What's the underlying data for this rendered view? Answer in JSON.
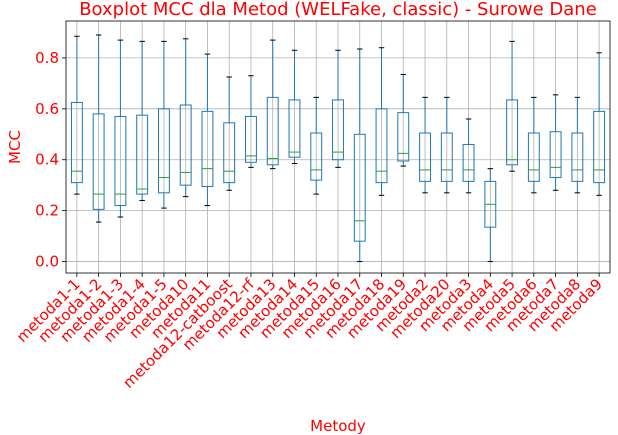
{
  "chart_data": {
    "type": "boxplot",
    "title": "Boxplot MCC dla Metod (WELFake, classic) - Surowe Dane",
    "xlabel": "Metody",
    "ylabel": "MCC",
    "ylim": [
      -0.045,
      0.945
    ],
    "yticks": [
      0.0,
      0.2,
      0.4,
      0.6,
      0.8
    ],
    "ytick_labels": [
      "0.0",
      "0.2",
      "0.4",
      "0.6",
      "0.8"
    ],
    "grid": true,
    "colors": {
      "text": "#ff0000",
      "box": "#1f77b4",
      "median": "#2ca02c",
      "cap": "#000000",
      "grid": "#b0b0b0"
    },
    "categories": [
      "metoda1-1",
      "metoda1-2",
      "metoda1-3",
      "metoda1-4",
      "metoda1-5",
      "metoda10",
      "metoda11",
      "metoda12-catboost",
      "metoda12-rf",
      "metoda13",
      "metoda14",
      "metoda15",
      "metoda16",
      "metoda17",
      "metoda18",
      "metoda19",
      "metoda2",
      "metoda20",
      "metoda3",
      "metoda4",
      "metoda5",
      "metoda6",
      "metoda7",
      "metoda8",
      "metoda9"
    ],
    "boxes": [
      {
        "whislo": 0.265,
        "q1": 0.31,
        "med": 0.355,
        "q3": 0.625,
        "whishi": 0.885
      },
      {
        "whislo": 0.155,
        "q1": 0.205,
        "med": 0.265,
        "q3": 0.58,
        "whishi": 0.89
      },
      {
        "whislo": 0.175,
        "q1": 0.22,
        "med": 0.265,
        "q3": 0.57,
        "whishi": 0.87
      },
      {
        "whislo": 0.24,
        "q1": 0.265,
        "med": 0.285,
        "q3": 0.575,
        "whishi": 0.865
      },
      {
        "whislo": 0.21,
        "q1": 0.27,
        "med": 0.33,
        "q3": 0.6,
        "whishi": 0.865
      },
      {
        "whislo": 0.255,
        "q1": 0.3,
        "med": 0.35,
        "q3": 0.615,
        "whishi": 0.875
      },
      {
        "whislo": 0.22,
        "q1": 0.295,
        "med": 0.365,
        "q3": 0.59,
        "whishi": 0.815
      },
      {
        "whislo": 0.28,
        "q1": 0.31,
        "med": 0.355,
        "q3": 0.545,
        "whishi": 0.725
      },
      {
        "whislo": 0.37,
        "q1": 0.39,
        "med": 0.415,
        "q3": 0.57,
        "whishi": 0.73
      },
      {
        "whislo": 0.365,
        "q1": 0.38,
        "med": 0.405,
        "q3": 0.645,
        "whishi": 0.87
      },
      {
        "whislo": 0.385,
        "q1": 0.41,
        "med": 0.43,
        "q3": 0.635,
        "whishi": 0.83
      },
      {
        "whislo": 0.265,
        "q1": 0.32,
        "med": 0.36,
        "q3": 0.505,
        "whishi": 0.645
      },
      {
        "whislo": 0.37,
        "q1": 0.4,
        "med": 0.43,
        "q3": 0.635,
        "whishi": 0.83
      },
      {
        "whislo": 0.0,
        "q1": 0.08,
        "med": 0.16,
        "q3": 0.5,
        "whishi": 0.835
      },
      {
        "whislo": 0.26,
        "q1": 0.31,
        "med": 0.355,
        "q3": 0.6,
        "whishi": 0.84
      },
      {
        "whislo": 0.375,
        "q1": 0.395,
        "med": 0.425,
        "q3": 0.585,
        "whishi": 0.735
      },
      {
        "whislo": 0.27,
        "q1": 0.315,
        "med": 0.36,
        "q3": 0.505,
        "whishi": 0.645
      },
      {
        "whislo": 0.27,
        "q1": 0.315,
        "med": 0.36,
        "q3": 0.505,
        "whishi": 0.645
      },
      {
        "whislo": 0.27,
        "q1": 0.315,
        "med": 0.36,
        "q3": 0.46,
        "whishi": 0.56
      },
      {
        "whislo": 0.0,
        "q1": 0.135,
        "med": 0.225,
        "q3": 0.315,
        "whishi": 0.365
      },
      {
        "whislo": 0.355,
        "q1": 0.38,
        "med": 0.4,
        "q3": 0.635,
        "whishi": 0.865
      },
      {
        "whislo": 0.27,
        "q1": 0.315,
        "med": 0.36,
        "q3": 0.505,
        "whishi": 0.645
      },
      {
        "whislo": 0.28,
        "q1": 0.33,
        "med": 0.37,
        "q3": 0.51,
        "whishi": 0.655
      },
      {
        "whislo": 0.27,
        "q1": 0.315,
        "med": 0.36,
        "q3": 0.505,
        "whishi": 0.645
      },
      {
        "whislo": 0.26,
        "q1": 0.31,
        "med": 0.36,
        "q3": 0.59,
        "whishi": 0.82
      }
    ]
  }
}
